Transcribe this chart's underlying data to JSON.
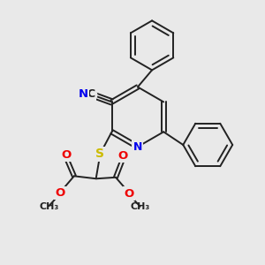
{
  "background_color": "#e9e9e9",
  "bond_color": "#222222",
  "bond_width": 1.4,
  "dbo": 0.08,
  "atom_colors": {
    "N": "#0000ee",
    "S": "#ccbb00",
    "O": "#ee0000",
    "C": "#222222",
    "CN_N": "#0000ee"
  }
}
